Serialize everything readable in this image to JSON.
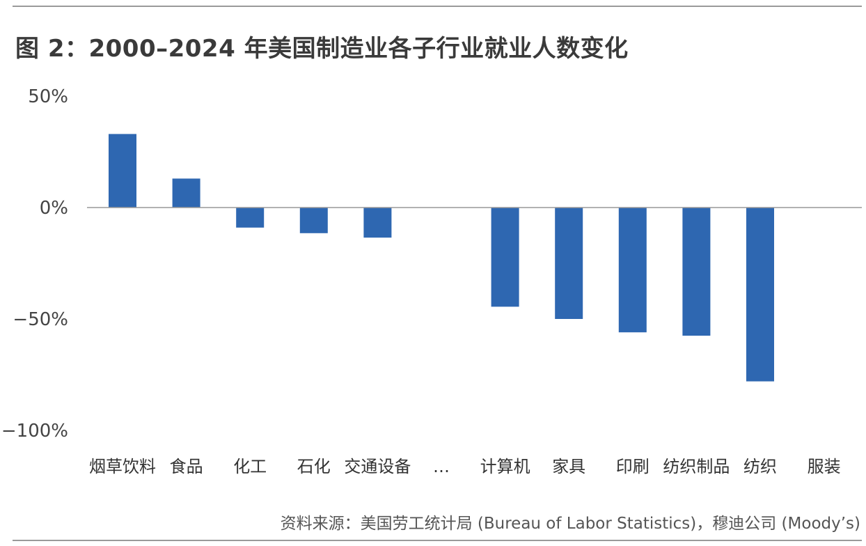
{
  "title": "图 2：2000–2024 年美国制造业各子行业就业人数变化",
  "source": "资料来源：美国劳工统计局 (Bureau of Labor Statistics)，穆迪公司 (Moody’s)",
  "colors": {
    "bar": "#2e67b1",
    "axis": "#999999",
    "rule": "#9a9a9a"
  },
  "chart_data": {
    "type": "bar",
    "categories": [
      "烟草饮料",
      "食品",
      "化工",
      "石化",
      "交通设备",
      "…",
      "计算机",
      "家具",
      "印刷",
      "纺织制品",
      "纺织",
      "服装"
    ],
    "values": [
      33,
      13,
      -9,
      -11.5,
      -13.5,
      null,
      -44.5,
      -50,
      -56,
      -57.5,
      -78,
      null
    ],
    "ylim": [
      -100,
      50
    ],
    "yticks": [
      50,
      0,
      -50,
      -100
    ],
    "ytick_labels": [
      "50%",
      "0%",
      "−50%",
      "−100%"
    ],
    "grid": false,
    "legend": "none"
  }
}
